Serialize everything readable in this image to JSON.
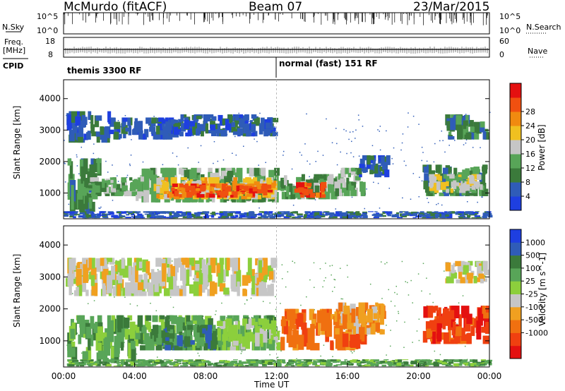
{
  "header": {
    "station": "McMurdo (fitACF)",
    "beam": "Beam 07",
    "date": "23/Mar/2015"
  },
  "strip": {
    "nsky_label": "N.Sky",
    "nsearch_label": "N.Search",
    "freq_label_1": "Freq.",
    "freq_label_2": "[MHz]",
    "nave_label": "Nave",
    "cpid_label": "CPID",
    "nsky_ticks": [
      "10^5",
      "10^0"
    ],
    "nsearch_ticks": [
      "10^5",
      "10^0"
    ],
    "freq_ticks": [
      "18",
      "8"
    ],
    "nave_ticks": [
      "60",
      "0"
    ],
    "cpid_segments": [
      {
        "label": "themis 3300 RF",
        "start_hour": 0
      },
      {
        "label": "normal (fast) 151 RF",
        "start_hour": 12
      }
    ]
  },
  "chart_data": [
    {
      "type": "heatmap",
      "title": "",
      "xlabel": "",
      "ylabel": "Slant Range [km]",
      "xlim": [
        0,
        24
      ],
      "ylim": [
        180,
        4600
      ],
      "x_ticks": [
        0,
        4,
        8,
        12,
        16,
        20,
        24
      ],
      "y_ticks": [
        1000,
        2000,
        3000,
        4000
      ],
      "y_tick_labels": [
        "1000",
        "2000",
        "3000",
        "4000"
      ],
      "colorbar": {
        "label": "Power [dB]",
        "ticks": [
          "4",
          "8",
          "12",
          "16",
          "20",
          "24",
          "28"
        ],
        "colors": [
          "#1e3fe0",
          "#2f5cb8",
          "#3b7a3b",
          "#58a558",
          "#c6c6c6",
          "#f0c020",
          "#f08a10",
          "#f05010",
          "#e41010"
        ]
      },
      "blobs": [
        {
          "x0": 0.1,
          "x1": 2.5,
          "r0": 2600,
          "r1": 3600,
          "level": 1
        },
        {
          "x0": 2.5,
          "x1": 6.5,
          "r0": 2700,
          "r1": 3400,
          "level": 1
        },
        {
          "x0": 6.5,
          "x1": 11.8,
          "r0": 2800,
          "r1": 3500,
          "level": 1
        },
        {
          "x0": 0.2,
          "x1": 2.0,
          "r0": 400,
          "r1": 2100,
          "level": 2
        },
        {
          "x0": 1.0,
          "x1": 4.5,
          "r0": 900,
          "r1": 1500,
          "level": 3
        },
        {
          "x0": 4.0,
          "x1": 12.0,
          "r0": 700,
          "r1": 1800,
          "level": 3
        },
        {
          "x0": 5.0,
          "x1": 11.8,
          "r0": 800,
          "r1": 1500,
          "level": 5
        },
        {
          "x0": 5.8,
          "x1": 11.6,
          "r0": 850,
          "r1": 1300,
          "level": 7
        },
        {
          "x0": 12.2,
          "x1": 15.5,
          "r0": 800,
          "r1": 1600,
          "level": 3
        },
        {
          "x0": 13.0,
          "x1": 14.6,
          "r0": 850,
          "r1": 1350,
          "level": 7
        },
        {
          "x0": 15.0,
          "x1": 16.8,
          "r0": 900,
          "r1": 1800,
          "level": 3
        },
        {
          "x0": 16.5,
          "x1": 18.2,
          "r0": 1500,
          "r1": 2200,
          "level": 1
        },
        {
          "x0": 20.2,
          "x1": 23.8,
          "r0": 900,
          "r1": 1900,
          "level": 2
        },
        {
          "x0": 20.5,
          "x1": 23.5,
          "r0": 1000,
          "r1": 1600,
          "level": 4
        },
        {
          "x0": 21.5,
          "x1": 23.8,
          "r0": 2700,
          "r1": 3500,
          "level": 2
        },
        {
          "x0": 0.0,
          "x1": 24.0,
          "r0": 200,
          "r1": 420,
          "level": 1
        }
      ]
    },
    {
      "type": "heatmap",
      "title": "",
      "xlabel": "Time UT",
      "ylabel": "Slant Range [km]",
      "xlim": [
        0,
        24
      ],
      "ylim": [
        180,
        4600
      ],
      "x_ticks": [
        0,
        4,
        8,
        12,
        16,
        20,
        24
      ],
      "x_tick_labels": [
        "00:00",
        "04:00",
        "08:00",
        "12:00",
        "16:00",
        "20:00",
        "00:00"
      ],
      "y_ticks": [
        1000,
        2000,
        3000,
        4000
      ],
      "y_tick_labels": [
        "1000",
        "2000",
        "3000",
        "4000"
      ],
      "colorbar": {
        "label": "Velocity [m s^-1]",
        "ticks": [
          "1000",
          "500",
          "100",
          "25",
          "-25",
          "-100",
          "-500",
          "-1000"
        ],
        "colors": [
          "#1e3fe0",
          "#2f5cb8",
          "#3b7a3b",
          "#58a558",
          "#8ccf3c",
          "#c6c6c6",
          "#f0a020",
          "#f07010",
          "#f04010",
          "#e41010"
        ]
      },
      "blobs": [
        {
          "x0": 0.1,
          "x1": 11.8,
          "r0": 2400,
          "r1": 3600,
          "level": 5
        },
        {
          "x0": 0.2,
          "x1": 4.0,
          "r0": 300,
          "r1": 1800,
          "level": 3
        },
        {
          "x0": 4.0,
          "x1": 11.8,
          "r0": 700,
          "r1": 1800,
          "level": 3
        },
        {
          "x0": 5.0,
          "x1": 8.5,
          "r0": 700,
          "r1": 1500,
          "level": 2
        },
        {
          "x0": 8.5,
          "x1": 12.0,
          "r0": 700,
          "r1": 1700,
          "level": 4
        },
        {
          "x0": 12.2,
          "x1": 16.8,
          "r0": 700,
          "r1": 2000,
          "level": 7
        },
        {
          "x0": 15.0,
          "x1": 18.0,
          "r0": 1200,
          "r1": 2200,
          "level": 6
        },
        {
          "x0": 20.2,
          "x1": 23.8,
          "r0": 900,
          "r1": 2100,
          "level": 8
        },
        {
          "x0": 21.5,
          "x1": 23.8,
          "r0": 2800,
          "r1": 3500,
          "level": 5
        },
        {
          "x0": 0.0,
          "x1": 24.0,
          "r0": 200,
          "r1": 420,
          "level": 3
        }
      ]
    }
  ]
}
